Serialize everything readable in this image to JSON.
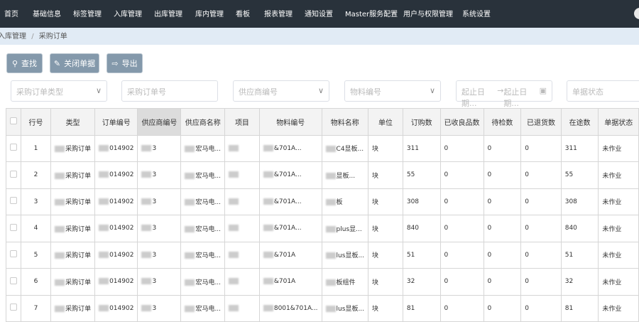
{
  "nav": [
    "首页",
    "基础信息",
    "标签管理",
    "入库管理",
    "出库管理",
    "库内管理",
    "看板",
    "报表管理",
    "通知设置",
    "Master服务配置",
    "用户与权限管理",
    "系统设置"
  ],
  "breadcrumb": {
    "parent": "入库管理",
    "sep": "/",
    "current": "采购订单"
  },
  "toolbar": {
    "find": "查找",
    "close": "关闭单据",
    "export": "导出"
  },
  "filters": {
    "type": "采购订单类型",
    "order_no": "采购订单号",
    "supplier_no": "供应商编号",
    "material_no": "物料编号",
    "start_date": "起止日期...",
    "arrow": "→",
    "end_date": "起止日期...",
    "status": "单据状态"
  },
  "table": {
    "headers": [
      "行号",
      "类型",
      "订单编号",
      "供应商编号",
      "供应商名称",
      "项目",
      "物料编号",
      "物料名称",
      "单位",
      "订购数",
      "已收良品数",
      "待检数",
      "已退货数",
      "在途数",
      "单据状态"
    ],
    "rows": [
      [
        "1",
        "采购订单",
        "014902",
        "3",
        "宏马电...",
        "",
        "&701A...",
        "C4显板...",
        "块",
        "311",
        "0",
        "0",
        "0",
        "311",
        "未作业"
      ],
      [
        "2",
        "采购订单",
        "014902",
        "3",
        "宏马电...",
        "",
        "&701A...",
        "显板...",
        "块",
        "55",
        "0",
        "0",
        "0",
        "55",
        "未作业"
      ],
      [
        "3",
        "采购订单",
        "014902",
        "3",
        "宏马电...",
        "",
        "&701A...",
        "板",
        "块",
        "308",
        "0",
        "0",
        "0",
        "308",
        "未作业"
      ],
      [
        "4",
        "采购订单",
        "014902",
        "3",
        "宏马电...",
        "",
        "&701A...",
        "plus显...",
        "块",
        "840",
        "0",
        "0",
        "0",
        "840",
        "未作业"
      ],
      [
        "5",
        "采购订单",
        "014902",
        "3",
        "宏马电...",
        "",
        "&701A",
        "lus显板...",
        "块",
        "51",
        "0",
        "0",
        "0",
        "51",
        "未作业"
      ],
      [
        "6",
        "采购订单",
        "014902",
        "3",
        "宏马电...",
        "",
        "&701A",
        "板组件",
        "块",
        "32",
        "0",
        "0",
        "0",
        "32",
        "未作业"
      ],
      [
        "7",
        "采购订单",
        "014902",
        "3",
        "宏马电...",
        "",
        "8001&701A...",
        "lus显板...",
        "块",
        "81",
        "0",
        "0",
        "0",
        "81",
        "未作业"
      ]
    ]
  }
}
